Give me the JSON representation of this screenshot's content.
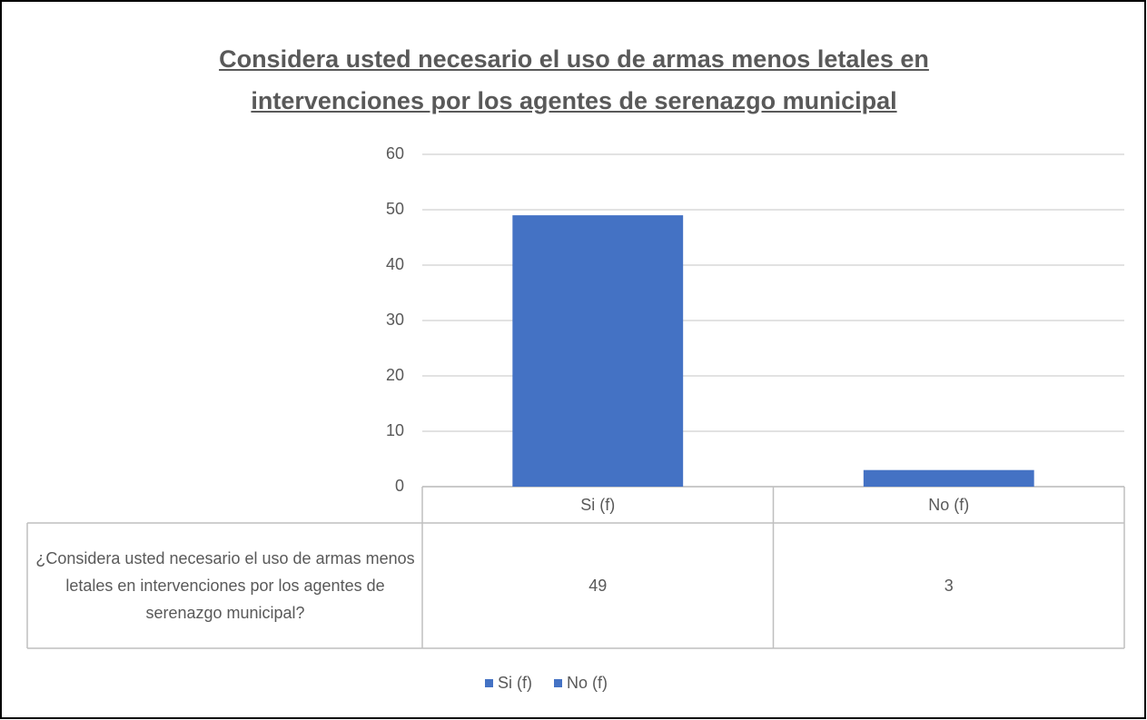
{
  "chart_data": {
    "type": "bar",
    "title": "Considera usted necesario el uso de armas menos letales en intervenciones por los agentes de serenazgo municipal",
    "categories": [
      "Si (f)",
      "No (f)"
    ],
    "series": [
      {
        "name": "¿Considera usted necesario el uso de armas menos letales en intervenciones por los agentes de serenazgo municipal?",
        "color": "#4472c4",
        "values": [
          49,
          3
        ]
      }
    ],
    "ylim": [
      0,
      60
    ],
    "yticks": [
      0,
      10,
      20,
      30,
      40,
      50,
      60
    ],
    "grid": true
  }
}
